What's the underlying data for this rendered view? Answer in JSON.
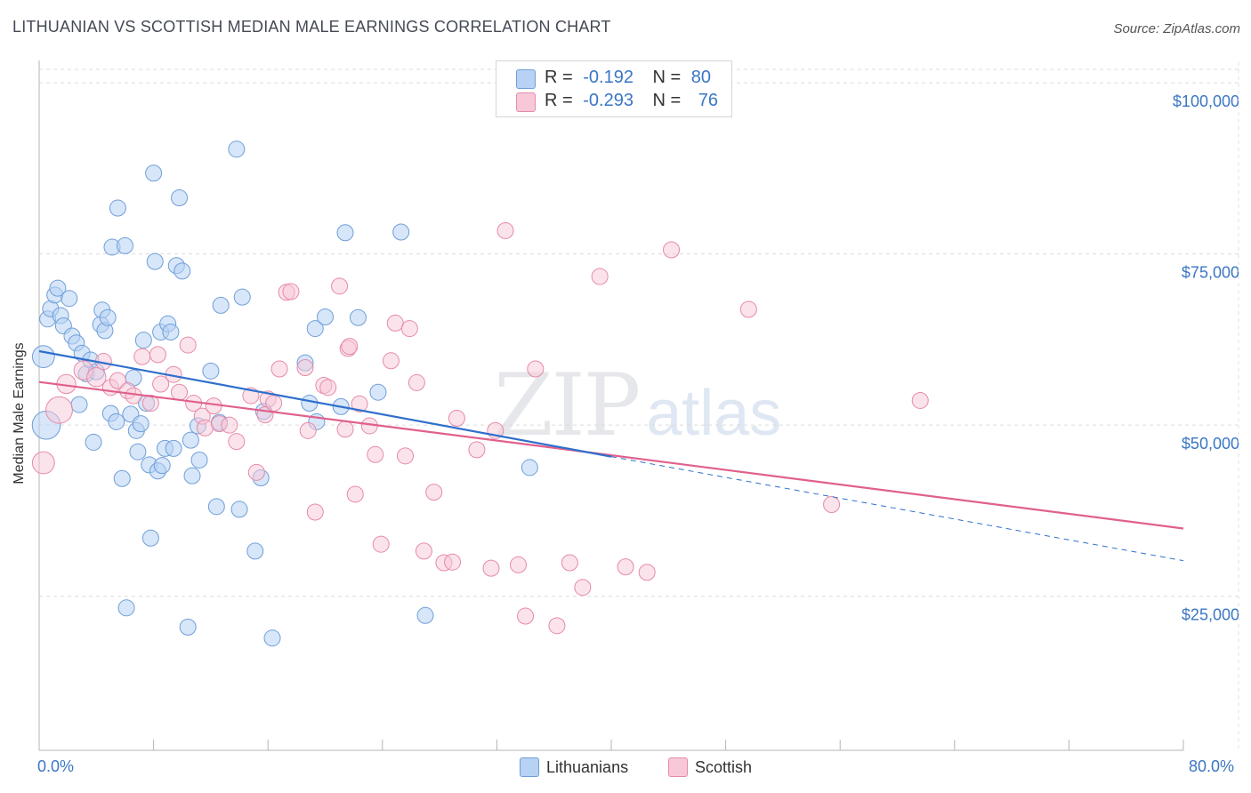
{
  "title": "LITHUANIAN VS SCOTTISH MEDIAN MALE EARNINGS CORRELATION CHART",
  "source": "Source: ZipAtlas.com",
  "watermark": {
    "zip": "ZIP",
    "atlas": "atlas"
  },
  "colors": {
    "lithuanians_fill": "#b7d2f4",
    "lithuanians_stroke": "#6f9fd8",
    "lithuanians_line": "#2f6fcc",
    "scottish_fill": "#f8c8d8",
    "scottish_stroke": "#e68aa8",
    "scottish_line": "#e0608c",
    "axis_label": "#3a76c4",
    "grid": "#dcdcdc"
  },
  "legend": {
    "rows": [
      {
        "r_label": "R =",
        "r_value": "-0.192",
        "n_label": "N =",
        "n_value": "80"
      },
      {
        "r_label": "R =",
        "r_value": "-0.293",
        "n_label": "N =",
        "n_value": "76"
      }
    ],
    "series": [
      "Lithuanians",
      "Scottish"
    ]
  },
  "chart_data": {
    "type": "scatter",
    "title": "LITHUANIAN VS SCOTTISH MEDIAN MALE EARNINGS CORRELATION CHART",
    "xlabel": "",
    "ylabel": "Median Male Earnings",
    "xlim": [
      0,
      80
    ],
    "ylim": [
      2500,
      103000
    ],
    "x_tick_labels": [
      "0.0%",
      "80.0%"
    ],
    "y_ticks": [
      25000,
      50000,
      75000,
      100000
    ],
    "y_tick_labels": [
      "$25,000",
      "$50,000",
      "$75,000",
      "$100,000"
    ],
    "grid": true,
    "legend_position": "top-center",
    "series": [
      {
        "name": "Lithuanians",
        "trend": {
          "x0": 0,
          "y0": 60800,
          "x1": 40,
          "y1": 45400,
          "dashed_to_x": 80,
          "dashed_to_y": 30200
        },
        "points": [
          [
            0.3,
            60000,
            14
          ],
          [
            0.5,
            50000,
            18
          ],
          [
            0.6,
            65500,
            10
          ],
          [
            0.8,
            67000,
            10
          ],
          [
            1.1,
            69000,
            10
          ],
          [
            1.3,
            70000,
            10
          ],
          [
            1.5,
            66000,
            10
          ],
          [
            1.7,
            64500,
            10
          ],
          [
            2.1,
            68500,
            10
          ],
          [
            2.3,
            63000,
            10
          ],
          [
            2.6,
            62000,
            10
          ],
          [
            2.8,
            53000,
            10
          ],
          [
            3.0,
            60500,
            10
          ],
          [
            3.3,
            57500,
            10
          ],
          [
            3.6,
            59500,
            10
          ],
          [
            3.8,
            47500,
            10
          ],
          [
            4.0,
            57800,
            10
          ],
          [
            4.3,
            64700,
            10
          ],
          [
            4.4,
            66800,
            10
          ],
          [
            4.6,
            63800,
            10
          ],
          [
            4.8,
            65700,
            10
          ],
          [
            5.0,
            51700,
            10
          ],
          [
            5.1,
            76000,
            10
          ],
          [
            5.4,
            50500,
            10
          ],
          [
            5.5,
            81700,
            10
          ],
          [
            5.8,
            42200,
            10
          ],
          [
            6.0,
            76200,
            10
          ],
          [
            6.1,
            23300,
            10
          ],
          [
            6.4,
            51600,
            10
          ],
          [
            6.6,
            56900,
            10
          ],
          [
            6.8,
            49200,
            10
          ],
          [
            6.9,
            46100,
            10
          ],
          [
            7.1,
            50200,
            10
          ],
          [
            7.3,
            62400,
            10
          ],
          [
            7.5,
            53200,
            10
          ],
          [
            7.7,
            44200,
            10
          ],
          [
            7.8,
            33500,
            10
          ],
          [
            8.0,
            86800,
            10
          ],
          [
            8.1,
            73900,
            10
          ],
          [
            8.3,
            43300,
            10
          ],
          [
            8.5,
            63600,
            10
          ],
          [
            8.6,
            44100,
            10
          ],
          [
            8.8,
            46600,
            10
          ],
          [
            9.0,
            64800,
            10
          ],
          [
            9.2,
            63600,
            10
          ],
          [
            9.4,
            46600,
            10
          ],
          [
            9.6,
            73300,
            10
          ],
          [
            9.8,
            83200,
            10
          ],
          [
            10.0,
            72500,
            10
          ],
          [
            10.4,
            20500,
            10
          ],
          [
            10.6,
            47800,
            10
          ],
          [
            10.7,
            42600,
            10
          ],
          [
            11.1,
            49900,
            10
          ],
          [
            11.2,
            44900,
            10
          ],
          [
            12.0,
            57900,
            10
          ],
          [
            12.4,
            38100,
            10
          ],
          [
            12.6,
            50400,
            10
          ],
          [
            12.7,
            67500,
            10
          ],
          [
            13.8,
            90300,
            10
          ],
          [
            14.0,
            37700,
            10
          ],
          [
            14.2,
            68700,
            10
          ],
          [
            15.1,
            31600,
            10
          ],
          [
            15.5,
            42300,
            10
          ],
          [
            15.7,
            52000,
            10
          ],
          [
            16.3,
            18900,
            10
          ],
          [
            18.6,
            59100,
            10
          ],
          [
            18.9,
            53200,
            10
          ],
          [
            19.3,
            64100,
            10
          ],
          [
            19.4,
            50500,
            10
          ],
          [
            20.0,
            65800,
            10
          ],
          [
            21.1,
            52700,
            10
          ],
          [
            21.4,
            78100,
            10
          ],
          [
            22.3,
            65700,
            10
          ],
          [
            23.7,
            54800,
            10
          ],
          [
            25.3,
            78200,
            10
          ],
          [
            27.0,
            22200,
            10
          ],
          [
            34.3,
            43800,
            10
          ]
        ]
      },
      {
        "name": "Scottish",
        "trend": {
          "x0": 0,
          "y0": 56300,
          "x1": 80,
          "y1": 34900
        },
        "points": [
          [
            0.3,
            44500,
            14
          ],
          [
            1.4,
            52200,
            17
          ],
          [
            1.9,
            56000,
            12
          ],
          [
            3.1,
            58000,
            12
          ],
          [
            4.0,
            57000,
            12
          ],
          [
            4.5,
            59300,
            10
          ],
          [
            5.0,
            55500,
            10
          ],
          [
            5.5,
            56500,
            10
          ],
          [
            6.2,
            55000,
            10
          ],
          [
            6.6,
            54300,
            10
          ],
          [
            7.2,
            60000,
            10
          ],
          [
            7.8,
            53200,
            10
          ],
          [
            8.3,
            60300,
            10
          ],
          [
            8.5,
            56000,
            10
          ],
          [
            9.4,
            57400,
            10
          ],
          [
            9.8,
            54800,
            10
          ],
          [
            10.4,
            61700,
            10
          ],
          [
            10.8,
            53200,
            10
          ],
          [
            11.4,
            51300,
            10
          ],
          [
            11.6,
            49600,
            10
          ],
          [
            12.2,
            52800,
            10
          ],
          [
            12.6,
            50200,
            10
          ],
          [
            13.3,
            50000,
            10
          ],
          [
            13.8,
            47600,
            10
          ],
          [
            14.8,
            54300,
            10
          ],
          [
            15.2,
            43100,
            10
          ],
          [
            15.8,
            51500,
            10
          ],
          [
            16.0,
            53800,
            10
          ],
          [
            16.4,
            53200,
            10
          ],
          [
            16.8,
            58200,
            10
          ],
          [
            17.3,
            69400,
            10
          ],
          [
            17.6,
            69500,
            10
          ],
          [
            18.6,
            58400,
            10
          ],
          [
            18.8,
            49200,
            10
          ],
          [
            19.3,
            37300,
            10
          ],
          [
            19.9,
            55800,
            10
          ],
          [
            20.2,
            55500,
            10
          ],
          [
            21.0,
            70300,
            10
          ],
          [
            21.4,
            49400,
            10
          ],
          [
            21.6,
            61200,
            10
          ],
          [
            21.7,
            61500,
            10
          ],
          [
            22.1,
            39900,
            10
          ],
          [
            22.4,
            53100,
            10
          ],
          [
            23.1,
            49900,
            10
          ],
          [
            23.5,
            45700,
            10
          ],
          [
            23.9,
            32600,
            10
          ],
          [
            24.6,
            59400,
            10
          ],
          [
            24.9,
            64900,
            10
          ],
          [
            25.6,
            45500,
            10
          ],
          [
            25.9,
            64100,
            10
          ],
          [
            26.4,
            56200,
            10
          ],
          [
            26.9,
            31600,
            10
          ],
          [
            27.6,
            40200,
            10
          ],
          [
            28.3,
            29900,
            10
          ],
          [
            28.9,
            30000,
            10
          ],
          [
            29.2,
            51000,
            10
          ],
          [
            30.6,
            46400,
            10
          ],
          [
            31.6,
            29100,
            10
          ],
          [
            31.9,
            49200,
            10
          ],
          [
            32.6,
            78400,
            10
          ],
          [
            33.5,
            29600,
            10
          ],
          [
            34.0,
            22100,
            10
          ],
          [
            34.7,
            58200,
            10
          ],
          [
            36.2,
            20700,
            10
          ],
          [
            37.1,
            29900,
            10
          ],
          [
            38.0,
            26300,
            10
          ],
          [
            39.2,
            71700,
            10
          ],
          [
            41.0,
            29300,
            10
          ],
          [
            42.5,
            28500,
            10
          ],
          [
            44.2,
            75600,
            10
          ],
          [
            49.6,
            66900,
            10
          ],
          [
            55.4,
            38400,
            10
          ],
          [
            61.6,
            53600,
            10
          ]
        ]
      }
    ]
  }
}
